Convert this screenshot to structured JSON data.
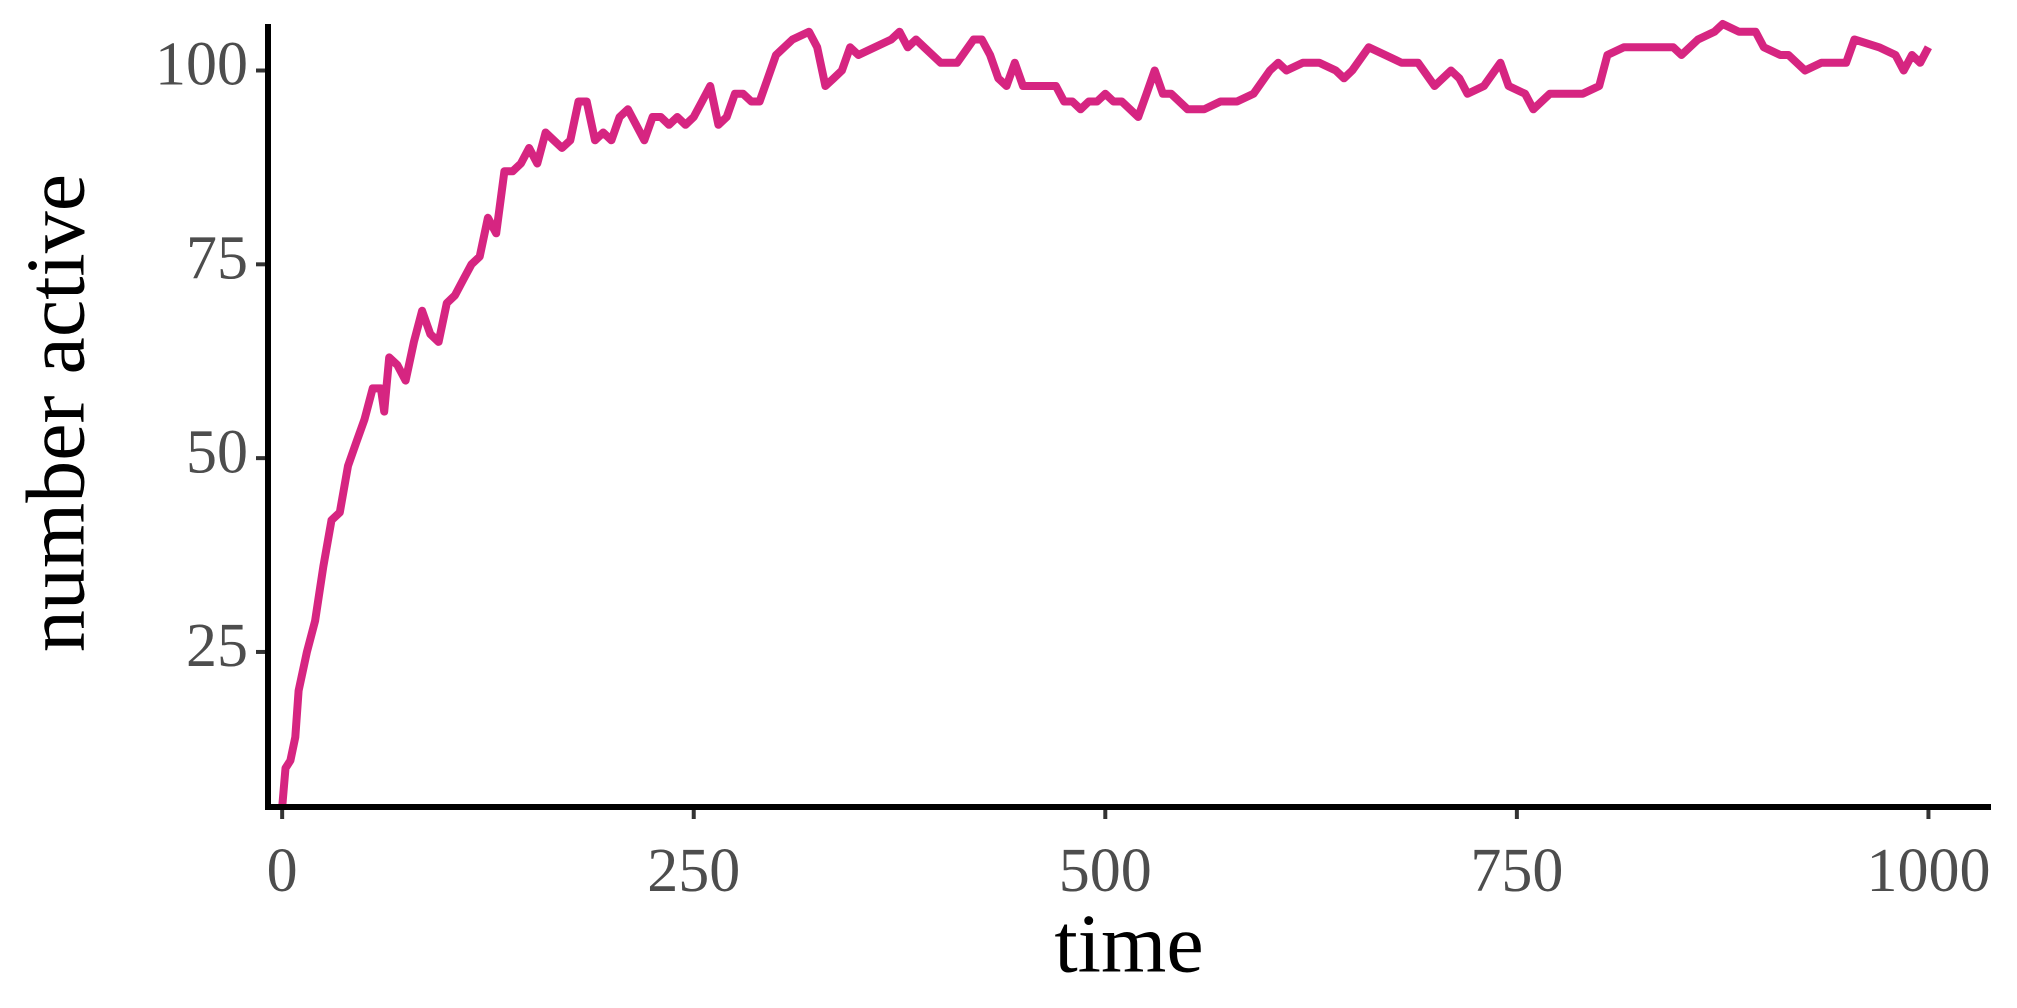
{
  "chart_data": {
    "type": "line",
    "x_label": "time",
    "y_label": "number active",
    "xlim": [
      -8.6,
      1038
    ],
    "ylim": [
      5,
      106
    ],
    "xticks": [
      0,
      250,
      500,
      750,
      1000
    ],
    "yticks": [
      25,
      50,
      75,
      100
    ],
    "x": [
      0,
      2,
      5,
      8,
      10,
      15,
      20,
      25,
      30,
      35,
      40,
      45,
      50,
      55,
      60,
      62,
      65,
      70,
      75,
      80,
      85,
      90,
      95,
      100,
      105,
      110,
      115,
      120,
      125,
      130,
      135,
      140,
      145,
      150,
      155,
      160,
      165,
      170,
      175,
      180,
      185,
      190,
      195,
      200,
      205,
      210,
      215,
      220,
      225,
      230,
      235,
      240,
      245,
      250,
      255,
      260,
      265,
      270,
      275,
      280,
      285,
      290,
      295,
      300,
      310,
      320,
      325,
      330,
      335,
      340,
      345,
      350,
      360,
      370,
      375,
      380,
      385,
      390,
      400,
      410,
      420,
      425,
      430,
      435,
      440,
      445,
      450,
      460,
      470,
      475,
      480,
      485,
      490,
      495,
      500,
      505,
      510,
      520,
      525,
      530,
      535,
      540,
      550,
      560,
      570,
      580,
      590,
      600,
      605,
      610,
      620,
      630,
      640,
      645,
      650,
      660,
      670,
      680,
      690,
      700,
      710,
      715,
      720,
      730,
      740,
      745,
      755,
      760,
      770,
      780,
      790,
      800,
      805,
      815,
      830,
      845,
      850,
      860,
      870,
      875,
      885,
      895,
      900,
      910,
      915,
      925,
      935,
      950,
      955,
      970,
      980,
      985,
      990,
      995,
      1000
    ],
    "series": [
      {
        "name": "number active",
        "color": "#d62581",
        "values": [
          5,
          10,
          11,
          14,
          20,
          25,
          29,
          36,
          42,
          43,
          49,
          52,
          55,
          59,
          59,
          56,
          63,
          62,
          60,
          65,
          69,
          66,
          65,
          70,
          71,
          73,
          75,
          76,
          81,
          79,
          87,
          87,
          88,
          90,
          88,
          92,
          91,
          90,
          91,
          96,
          96,
          91,
          92,
          91,
          94,
          95,
          93,
          91,
          94,
          94,
          93,
          94,
          93,
          94,
          96,
          98,
          93,
          94,
          97,
          97,
          96,
          96,
          99,
          102,
          104,
          105,
          103,
          98,
          99,
          100,
          103,
          102,
          103,
          104,
          105,
          103,
          104,
          103,
          101,
          101,
          104,
          104,
          102,
          99,
          98,
          101,
          98,
          98,
          98,
          96,
          96,
          95,
          96,
          96,
          97,
          96,
          96,
          94,
          97,
          100,
          97,
          97,
          95,
          95,
          96,
          96,
          97,
          100,
          101,
          100,
          101,
          101,
          100,
          99,
          100,
          103,
          102,
          101,
          101,
          98,
          100,
          99,
          97,
          98,
          101,
          98,
          97,
          95,
          97,
          97,
          97,
          98,
          102,
          103,
          103,
          103,
          102,
          104,
          105,
          106,
          105,
          105,
          103,
          102,
          102,
          100,
          101,
          101,
          104,
          103,
          102,
          100,
          102,
          101,
          103
        ]
      }
    ]
  }
}
